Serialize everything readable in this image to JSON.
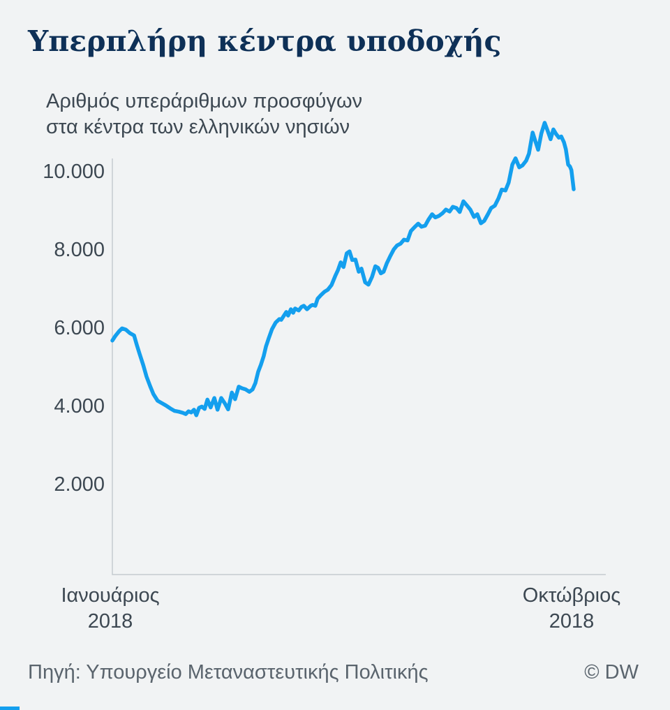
{
  "header": {
    "title": "Υπερπλήρη κέντρα υποδοχής",
    "subtitle_line1": "Αριθμός υπεράριθμων προσφύγων",
    "subtitle_line2": "στα κέντρα των ελληνικών νησιών"
  },
  "footer": {
    "source": "Πηγή: Υπουργείο Μεταναστευτικής Πολιτικής",
    "copyright": "© DW"
  },
  "colors": {
    "background": "#f1f3f4",
    "title": "#0e3057",
    "text": "#3d4852",
    "muted": "#5a646d",
    "axis": "#c5cbd0",
    "line": "#149fee",
    "brand_bar": "#149fee"
  },
  "chart_data": {
    "type": "line",
    "title": "Υπερπλήρη κέντρα υποδοχής",
    "subtitle": "Αριθμός υπεράριθμων προσφύγων στα κέντρα των ελληνικών νησιών",
    "grid": "off",
    "legend": "none",
    "y_axis": {
      "ticks": [
        {
          "label": "10.000",
          "value": 10000
        },
        {
          "label": "8.000",
          "value": 8000
        },
        {
          "label": "6.000",
          "value": 6000
        },
        {
          "label": "4.000",
          "value": 4000
        },
        {
          "label": "2.000",
          "value": 2000
        }
      ]
    },
    "x_axis": {
      "start_label_line1": "Ιανουάριος",
      "start_label_line2": "2018",
      "end_label_line1": "Οκτώβριος",
      "end_label_line2": "2018"
    },
    "x_unit": "fraction of timeline from Ιανουάριος 2018 (0) to Οκτώβριος 2018 (1)",
    "y_unit": "πρόσφυγες",
    "series": [
      {
        "points": [
          [
            0.0,
            5700
          ],
          [
            0.006,
            5810
          ],
          [
            0.014,
            5930
          ],
          [
            0.021,
            6010
          ],
          [
            0.029,
            5980
          ],
          [
            0.038,
            5890
          ],
          [
            0.047,
            5830
          ],
          [
            0.053,
            5590
          ],
          [
            0.059,
            5360
          ],
          [
            0.067,
            5070
          ],
          [
            0.074,
            4780
          ],
          [
            0.082,
            4530
          ],
          [
            0.089,
            4330
          ],
          [
            0.098,
            4160
          ],
          [
            0.107,
            4100
          ],
          [
            0.116,
            4040
          ],
          [
            0.126,
            3960
          ],
          [
            0.135,
            3900
          ],
          [
            0.144,
            3880
          ],
          [
            0.153,
            3850
          ],
          [
            0.159,
            3820
          ],
          [
            0.165,
            3890
          ],
          [
            0.171,
            3860
          ],
          [
            0.177,
            3930
          ],
          [
            0.182,
            3790
          ],
          [
            0.188,
            3980
          ],
          [
            0.194,
            4010
          ],
          [
            0.2,
            3950
          ],
          [
            0.206,
            4190
          ],
          [
            0.213,
            3990
          ],
          [
            0.221,
            4230
          ],
          [
            0.228,
            3930
          ],
          [
            0.236,
            4230
          ],
          [
            0.244,
            4090
          ],
          [
            0.251,
            3940
          ],
          [
            0.259,
            4370
          ],
          [
            0.266,
            4200
          ],
          [
            0.274,
            4520
          ],
          [
            0.281,
            4480
          ],
          [
            0.289,
            4450
          ],
          [
            0.297,
            4390
          ],
          [
            0.304,
            4450
          ],
          [
            0.31,
            4610
          ],
          [
            0.316,
            4900
          ],
          [
            0.322,
            5080
          ],
          [
            0.328,
            5300
          ],
          [
            0.333,
            5550
          ],
          [
            0.339,
            5760
          ],
          [
            0.346,
            5990
          ],
          [
            0.354,
            6160
          ],
          [
            0.362,
            6250
          ],
          [
            0.366,
            6230
          ],
          [
            0.372,
            6340
          ],
          [
            0.377,
            6430
          ],
          [
            0.381,
            6340
          ],
          [
            0.387,
            6500
          ],
          [
            0.392,
            6410
          ],
          [
            0.396,
            6520
          ],
          [
            0.404,
            6470
          ],
          [
            0.41,
            6560
          ],
          [
            0.415,
            6590
          ],
          [
            0.422,
            6500
          ],
          [
            0.43,
            6590
          ],
          [
            0.434,
            6610
          ],
          [
            0.44,
            6590
          ],
          [
            0.445,
            6770
          ],
          [
            0.452,
            6860
          ],
          [
            0.46,
            6950
          ],
          [
            0.467,
            7000
          ],
          [
            0.475,
            7120
          ],
          [
            0.483,
            7350
          ],
          [
            0.489,
            7500
          ],
          [
            0.495,
            7700
          ],
          [
            0.501,
            7580
          ],
          [
            0.508,
            7930
          ],
          [
            0.514,
            7980
          ],
          [
            0.52,
            7760
          ],
          [
            0.527,
            7770
          ],
          [
            0.534,
            7460
          ],
          [
            0.54,
            7540
          ],
          [
            0.548,
            7190
          ],
          [
            0.555,
            7130
          ],
          [
            0.563,
            7330
          ],
          [
            0.57,
            7600
          ],
          [
            0.576,
            7560
          ],
          [
            0.582,
            7420
          ],
          [
            0.588,
            7460
          ],
          [
            0.595,
            7680
          ],
          [
            0.602,
            7850
          ],
          [
            0.61,
            8030
          ],
          [
            0.617,
            8130
          ],
          [
            0.625,
            8180
          ],
          [
            0.632,
            8280
          ],
          [
            0.64,
            8260
          ],
          [
            0.647,
            8500
          ],
          [
            0.655,
            8600
          ],
          [
            0.663,
            8690
          ],
          [
            0.67,
            8610
          ],
          [
            0.678,
            8640
          ],
          [
            0.685,
            8790
          ],
          [
            0.693,
            8930
          ],
          [
            0.7,
            8850
          ],
          [
            0.708,
            8890
          ],
          [
            0.716,
            8960
          ],
          [
            0.723,
            9050
          ],
          [
            0.731,
            9000
          ],
          [
            0.738,
            9120
          ],
          [
            0.746,
            9090
          ],
          [
            0.753,
            8990
          ],
          [
            0.761,
            9260
          ],
          [
            0.769,
            9150
          ],
          [
            0.776,
            9050
          ],
          [
            0.784,
            8860
          ],
          [
            0.791,
            8930
          ],
          [
            0.799,
            8700
          ],
          [
            0.806,
            8760
          ],
          [
            0.814,
            8930
          ],
          [
            0.821,
            9090
          ],
          [
            0.829,
            9150
          ],
          [
            0.837,
            9340
          ],
          [
            0.844,
            9560
          ],
          [
            0.852,
            9540
          ],
          [
            0.859,
            9740
          ],
          [
            0.867,
            10200
          ],
          [
            0.874,
            10360
          ],
          [
            0.882,
            10130
          ],
          [
            0.889,
            10180
          ],
          [
            0.897,
            10300
          ],
          [
            0.903,
            10480
          ],
          [
            0.911,
            11020
          ],
          [
            0.917,
            10800
          ],
          [
            0.923,
            10580
          ],
          [
            0.93,
            11000
          ],
          [
            0.937,
            11270
          ],
          [
            0.944,
            11050
          ],
          [
            0.95,
            10850
          ],
          [
            0.956,
            11100
          ],
          [
            0.962,
            10980
          ],
          [
            0.968,
            10890
          ],
          [
            0.973,
            10920
          ],
          [
            0.979,
            10770
          ],
          [
            0.983,
            10590
          ],
          [
            0.988,
            10200
          ],
          [
            0.992,
            10150
          ],
          [
            0.995,
            10060
          ],
          [
            1.0,
            9570
          ]
        ]
      }
    ]
  }
}
